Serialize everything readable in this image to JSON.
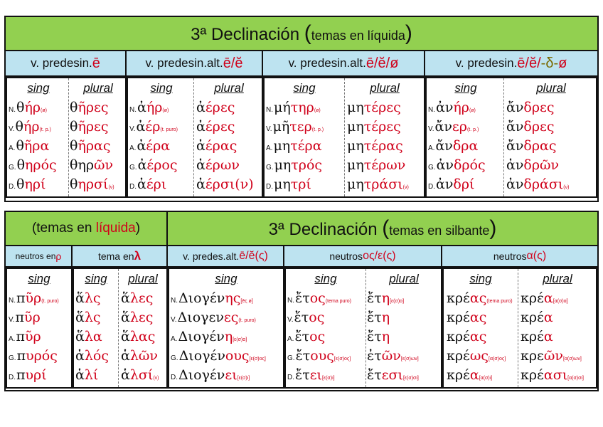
{
  "top": {
    "title_pre": "3ª Declinación ",
    "title_paren_open": "(",
    "title_small": "temas en líquida",
    "title_paren_close": ")",
    "headers": [
      {
        "pre": "v. predesin. ",
        "red": "ē"
      },
      {
        "pre": "v. predesin.alt. ",
        "red": "ē/ĕ"
      },
      {
        "pre": "v. predesin.alt. ",
        "red": "ē/ĕ/ø"
      },
      {
        "pre": "v. predesin. ",
        "red": "ē/ĕ/",
        "olive": "-δ-",
        "red2": "ø"
      }
    ],
    "col_sing": "sing",
    "col_plural": "plural",
    "tables": [
      {
        "rows": [
          {
            "c": "N.",
            "sa": "θ",
            "sb": "ήρ",
            "sn": "(ø)",
            "pa": "θ",
            "pb": "ῆρες",
            "pn": ""
          },
          {
            "c": "V.",
            "sa": "θ",
            "sb": "ήρ",
            "sn": "(t. p.)",
            "pa": "θ",
            "pb": "ῆρες",
            "pn": ""
          },
          {
            "c": "A.",
            "sa": "θ",
            "sb": "ῆρα",
            "sn": "",
            "pa": "θ",
            "pb": "ῆρας",
            "pn": ""
          },
          {
            "c": "G.",
            "sa": "θ",
            "sb": "ηρός",
            "sn": "",
            "pa": "θηρ",
            "pb": "ῶν",
            "pn": ""
          },
          {
            "c": "D.",
            "sa": "θ",
            "sb": "ηρί",
            "sn": "",
            "pa": "θ",
            "pb": "ηρσί",
            "pn": "(ν)"
          }
        ]
      },
      {
        "rows": [
          {
            "c": "N.",
            "sa": "ἀ",
            "sb": "ήρ",
            "sn": "(ø)",
            "pa": "ἀ",
            "pb": "έρες",
            "pn": ""
          },
          {
            "c": "V.",
            "sa": "ἀ",
            "sb": "έρ",
            "sn": "(t. puro)",
            "pa": "ἀ",
            "pb": "έρες",
            "pn": ""
          },
          {
            "c": "A.",
            "sa": "ἀ",
            "sb": "έρα",
            "sn": "",
            "pa": "ἀ",
            "pb": "έρας",
            "pn": ""
          },
          {
            "c": "G.",
            "sa": "ἀ",
            "sb": "έρος",
            "sn": "",
            "pa": "ἀ",
            "pb": "έρων",
            "pn": ""
          },
          {
            "c": "D.",
            "sa": "ἀ",
            "sb": "έρι",
            "sn": "",
            "pa": "ἀ",
            "pb": "έρσι(ν)",
            "pn": ""
          }
        ]
      },
      {
        "rows": [
          {
            "c": "N.",
            "sa": "μή",
            "sb": "τηρ",
            "sn": "(ø)",
            "pa": "μη",
            "pb": "τέρες",
            "pn": ""
          },
          {
            "c": "V.",
            "sa": "μῆ",
            "sb": "τερ",
            "sn": "(t. p.)",
            "pa": "μη",
            "pb": "τέρες",
            "pn": ""
          },
          {
            "c": "A.",
            "sa": "μη",
            "sb": "τέρα",
            "sn": "",
            "pa": "μη",
            "pb": "τέρας",
            "pn": ""
          },
          {
            "c": "G.",
            "sa": "μη",
            "sb": "τρός",
            "sn": "",
            "pa": "μη",
            "pb": "τέρων",
            "pn": ""
          },
          {
            "c": "D.",
            "sa": "μη",
            "sb": "τρί",
            "sn": "",
            "pa": "μη",
            "pb": "τράσι",
            "pn": "(ν)"
          }
        ]
      },
      {
        "rows": [
          {
            "c": "N.",
            "sa": "ἀν",
            "sb": "ήρ",
            "sn": "(ø)",
            "pa": "ἄν",
            "pb": "δρες",
            "pn": ""
          },
          {
            "c": "V.",
            "sa": "ἄν",
            "sb": "ερ",
            "sn": "(t. p.)",
            "pa": "ἄν",
            "pb": "δρες",
            "pn": ""
          },
          {
            "c": "A.",
            "sa": "ἄν",
            "sb": "δρα",
            "sn": "",
            "pa": "ἄν",
            "pb": "δρας",
            "pn": ""
          },
          {
            "c": "G.",
            "sa": "ἀν",
            "sb": "δρός",
            "sn": "",
            "pa": "ἀν",
            "pb": "δρῶν",
            "pn": ""
          },
          {
            "c": "D.",
            "sa": "ἀν",
            "sb": "δρί",
            "sn": "",
            "pa": "ἀν",
            "pb": "δράσι",
            "pn": "(ν)"
          }
        ]
      }
    ]
  },
  "bottom": {
    "left_title_pre": "(temas en ",
    "left_title_red": "líquida",
    "left_title_post": ")",
    "right_title_pre": "3ª Declinación ",
    "right_title_paren_open": "(",
    "right_title_small": "temas en silbante",
    "right_title_paren_close": ")",
    "headers": [
      {
        "pre": "neutros en ",
        "red": "ρ"
      },
      {
        "pre": "tema en ",
        "red": "λ"
      },
      {
        "pre": "v. predes.alt. ",
        "red": "ē/ĕ(ς)"
      },
      {
        "pre": "neutros ",
        "red": "ος/ε(ς)"
      },
      {
        "pre": "neutros ",
        "red": "α(ς)"
      }
    ],
    "col_sing": "sing",
    "col_plural": "plural",
    "pur": [
      {
        "c": "N.",
        "a": "π",
        "b": "ῦρ",
        "n": "(t. puro)"
      },
      {
        "c": "V.",
        "a": "π",
        "b": "ῦρ",
        "n": ""
      },
      {
        "c": "A.",
        "a": "π",
        "b": "ῦρ",
        "n": ""
      },
      {
        "c": "G.",
        "a": "π",
        "b": "υρός",
        "n": ""
      },
      {
        "c": "D.",
        "a": "π",
        "b": "υρί",
        "n": ""
      }
    ],
    "hals": [
      {
        "c": "",
        "sa": "ἅ",
        "sb": "λς",
        "sn": "",
        "pa": "ἅ",
        "pb": "λες",
        "pn": ""
      },
      {
        "c": "",
        "sa": "ἅ",
        "sb": "λς",
        "sn": "",
        "pa": "ἅ",
        "pb": "λες",
        "pn": ""
      },
      {
        "c": "",
        "sa": "ἅ",
        "sb": "λα",
        "sn": "",
        "pa": "ἅ",
        "pb": "λας",
        "pn": ""
      },
      {
        "c": "",
        "sa": "ἁ",
        "sb": "λός",
        "sn": "",
        "pa": "ἁ",
        "pb": "λῶν",
        "pn": ""
      },
      {
        "c": "",
        "sa": "ἁ",
        "sb": "λί",
        "sn": "",
        "pa": "ἁ",
        "pb": "λσί",
        "pn": "(ν)"
      }
    ],
    "diog": [
      {
        "c": "N.",
        "a": "Διογέν",
        "b": "ης",
        "n": "[ēς ø]",
        "nk": ""
      },
      {
        "c": "V.",
        "a": "Διογεν",
        "b": "ες",
        "n": "(t. puro)",
        "nk": ""
      },
      {
        "c": "A.",
        "a": "Διογέν",
        "b": "η",
        "n": "[ε(σ)α]",
        "nk": ""
      },
      {
        "c": "G.",
        "a": "Διογέν",
        "b": "ους",
        "n": "[ε(σ)ος]",
        "nk": ""
      },
      {
        "c": "D.",
        "a": "Διογέν",
        "b": "ει",
        "n": "[ε(σ)ι]",
        "nk": ""
      }
    ],
    "etos": [
      {
        "c": "N.",
        "sa": "ἔτ",
        "sb": "ος",
        "sn": "(tema puro)",
        "pa": "ἔτ",
        "pb": "η",
        "pn": "[ε(σ)α]"
      },
      {
        "c": "V.",
        "sa": "ἔτ",
        "sb": "ος",
        "sn": "",
        "pa": "ἔτ",
        "pb": "η",
        "pn": ""
      },
      {
        "c": "A.",
        "sa": "ἔτ",
        "sb": "ος",
        "sn": "",
        "pa": "ἔτ",
        "pb": "η",
        "pn": ""
      },
      {
        "c": "G.",
        "sa": "ἔτ",
        "sb": "ους",
        "sn": "[ε(σ)ος]",
        "pa": "ἐτ",
        "pb": "ῶν",
        "pn": "[ε(σ)ων]"
      },
      {
        "c": "D.",
        "sa": "ἔτ",
        "sb": "ει",
        "sn": "[ε(σ)ι]",
        "pa": "ἔτ",
        "pb": "εσι",
        "pn": "[ε(σ)σι]"
      }
    ],
    "kreas": [
      {
        "sa": "κρέ",
        "sb": "ας",
        "sn": "(tema puro)",
        "pa": "κρέ",
        "pb": "α",
        "pn": "[α(σ)α]"
      },
      {
        "sa": "κρέ",
        "sb": "ας",
        "sn": "",
        "pa": "κρέ",
        "pb": "α",
        "pn": ""
      },
      {
        "sa": "κρέ",
        "sb": "ας",
        "sn": "",
        "pa": "κρέ",
        "pb": "α",
        "pn": ""
      },
      {
        "sa": "κρέ",
        "sb": "ως",
        "sn": "[α(σ)ος]",
        "pa": "κρε",
        "pb": "ῶν",
        "pn": "[α(σ)ων]"
      },
      {
        "sa": "κρέ",
        "sb": "α",
        "sn": "[α(σ)ι]",
        "pa": "κρέ",
        "pb": "ασι",
        "pn": "[α(σ)σι]"
      }
    ]
  }
}
